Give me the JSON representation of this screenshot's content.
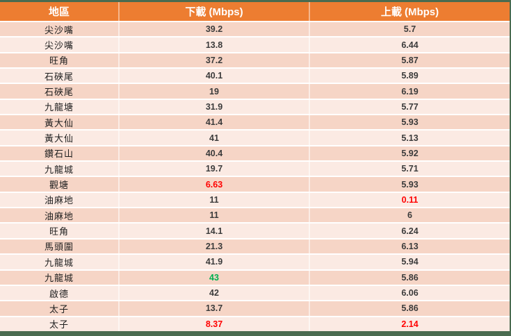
{
  "colors": {
    "header_bg": "#ED7D31",
    "band_dark": "#F6D5C6",
    "band_light": "#FBEAE3",
    "frame_green": "#4A6B50",
    "value_red": "#FF0000",
    "value_green": "#00B050",
    "header_text": "#FFFFFF"
  },
  "chart_data": {
    "type": "table",
    "columns": [
      "地區",
      "下載 (Mbps)",
      "上載 (Mbps)"
    ],
    "rows": [
      {
        "area": "尖沙嘴",
        "download": "39.2",
        "upload": "5.7",
        "download_highlight": null,
        "upload_highlight": null
      },
      {
        "area": "尖沙嘴",
        "download": "13.8",
        "upload": "6.44",
        "download_highlight": null,
        "upload_highlight": null
      },
      {
        "area": "旺角",
        "download": "37.2",
        "upload": "5.87",
        "download_highlight": null,
        "upload_highlight": null
      },
      {
        "area": "石硤尾",
        "download": "40.1",
        "upload": "5.89",
        "download_highlight": null,
        "upload_highlight": null
      },
      {
        "area": "石硤尾",
        "download": "19",
        "upload": "6.19",
        "download_highlight": null,
        "upload_highlight": null
      },
      {
        "area": "九龍塘",
        "download": "31.9",
        "upload": "5.77",
        "download_highlight": null,
        "upload_highlight": null
      },
      {
        "area": "黃大仙",
        "download": "41.4",
        "upload": "5.93",
        "download_highlight": null,
        "upload_highlight": null
      },
      {
        "area": "黃大仙",
        "download": "41",
        "upload": "5.13",
        "download_highlight": null,
        "upload_highlight": null
      },
      {
        "area": "鑽石山",
        "download": "40.4",
        "upload": "5.92",
        "download_highlight": null,
        "upload_highlight": null
      },
      {
        "area": "九龍城",
        "download": "19.7",
        "upload": "5.71",
        "download_highlight": null,
        "upload_highlight": null
      },
      {
        "area": "觀塘",
        "download": "6.63",
        "upload": "5.93",
        "download_highlight": "red",
        "upload_highlight": null
      },
      {
        "area": "油麻地",
        "download": "11",
        "upload": "0.11",
        "download_highlight": null,
        "upload_highlight": "red"
      },
      {
        "area": "油麻地",
        "download": "11",
        "upload": "6",
        "download_highlight": null,
        "upload_highlight": null
      },
      {
        "area": "旺角",
        "download": "14.1",
        "upload": "6.24",
        "download_highlight": null,
        "upload_highlight": null
      },
      {
        "area": "馬頭圍",
        "download": "21.3",
        "upload": "6.13",
        "download_highlight": null,
        "upload_highlight": null
      },
      {
        "area": "九龍城",
        "download": "41.9",
        "upload": "5.94",
        "download_highlight": null,
        "upload_highlight": null
      },
      {
        "area": "九龍城",
        "download": "43",
        "upload": "5.86",
        "download_highlight": "green",
        "upload_highlight": null
      },
      {
        "area": "啟德",
        "download": "42",
        "upload": "6.06",
        "download_highlight": null,
        "upload_highlight": null
      },
      {
        "area": "太子",
        "download": "13.7",
        "upload": "5.86",
        "download_highlight": null,
        "upload_highlight": null
      },
      {
        "area": "太子",
        "download": "8.37",
        "upload": "2.14",
        "download_highlight": "red",
        "upload_highlight": "red"
      }
    ]
  }
}
